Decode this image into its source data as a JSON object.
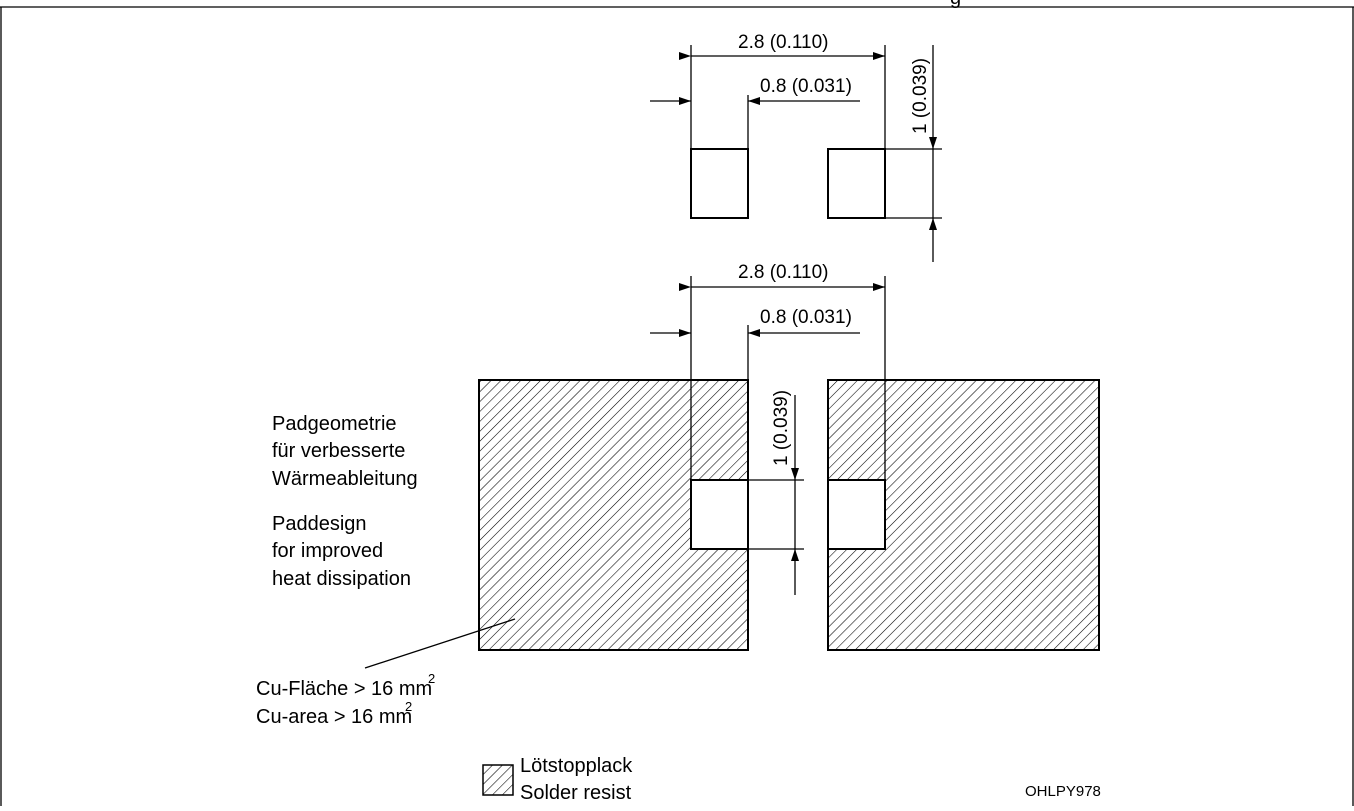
{
  "header_fragment": "g",
  "top": {
    "dim_total": "2.8 (0.110)",
    "dim_pad_width": "0.8 (0.031)",
    "dim_pad_height": "1 (0.039)"
  },
  "bottom": {
    "dim_total": "2.8 (0.110)",
    "dim_pad_width": "0.8 (0.031)",
    "dim_pad_height": "1 (0.039)"
  },
  "pad_description": {
    "de": [
      "Padgeometrie",
      "für verbesserte",
      "Wärmeableitung"
    ],
    "en": [
      "Paddesign",
      "for improved",
      "heat dissipation"
    ]
  },
  "copper_area": {
    "de": "Cu-Fläche > 16 mm",
    "en": "Cu-area > 16 mm",
    "exponent": "2"
  },
  "legend": {
    "de": "Lötstopplack",
    "en": "Solder resist"
  },
  "drawing_code": "OHLPY978"
}
